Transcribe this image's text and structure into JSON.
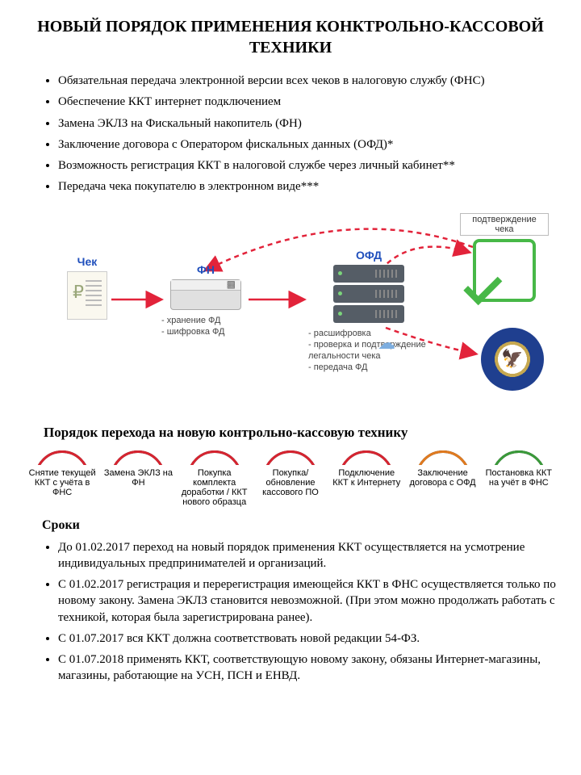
{
  "title": "НОВЫЙ ПОРЯДОК ПРИМЕНЕНИЯ КОНКТРОЛЬНО-КАССОВОЙ ТЕХНИКИ",
  "bullets": [
    "Обязательная передача электронной версии всех чеков в налоговую службу (ФНС)",
    "Обеспечение ККТ интернет подключением",
    "Замена ЭКЛЗ на Фискальный накопитель (ФН)",
    "Заключение договора с Оператором фискальных данных (ОФД)*",
    "Возможность регистрация ККТ в налоговой службе через личный кабинет**",
    "Передача чека покупателю в электронном виде***"
  ],
  "diagram": {
    "receipt_label": "Чек",
    "fn_label": "ФН",
    "fn_caption": "- хранение ФД\n- шифровка ФД",
    "ofd_label": "ОФД",
    "ofd_caption": "- расшифровка\n- проверка и подтверждение\nлегальности чека\n- передача ФД",
    "confirm_label": "подтверждение чека",
    "arrow_color": "#e2233a",
    "check_color": "#47b847",
    "label_color": "#1f4fbc"
  },
  "section2_title": "Порядок перехода на новую контрольно-кассовую технику",
  "steps": [
    {
      "text": "Снятие текущей ККТ с учёта в ФНС",
      "color": "#d62430"
    },
    {
      "text": "Замена ЭКЛЗ на ФН",
      "color": "#d62430"
    },
    {
      "text": "Покупка комплекта доработки / ККТ нового образца",
      "color": "#d62430"
    },
    {
      "text": "Покупка/обновление кассового ПО",
      "color": "#d62430"
    },
    {
      "text": "Подключение ККТ к Интернету",
      "color": "#d62430"
    },
    {
      "text": "Заключение договора с ОФД",
      "color": "#e07a1f"
    },
    {
      "text": "Постановка ККТ на учёт в ФНС",
      "color": "#3a9a3a"
    }
  ],
  "sroki_title": "Сроки",
  "sroki": [
    "До 01.02.2017 переход на новый порядок применения ККТ осуществляется на усмотрение индивидуальных предпринимателей и организаций.",
    "С 01.02.2017 регистрация и перерегистрация имеющейся ККТ в ФНС осуществляется только по новому закону. Замена ЭКЛЗ становится невозможной. (При этом можно продолжать работать с техникой, которая была зарегистрирована ранее).",
    "С 01.07.2017 вся ККТ должна соответствовать новой редакции 54-ФЗ.",
    "С 01.07.2018 применять ККТ, соответствующую новому закону, обязаны Интернет-магазины, магазины, работающие на УСН, ПСН и ЕНВД."
  ]
}
